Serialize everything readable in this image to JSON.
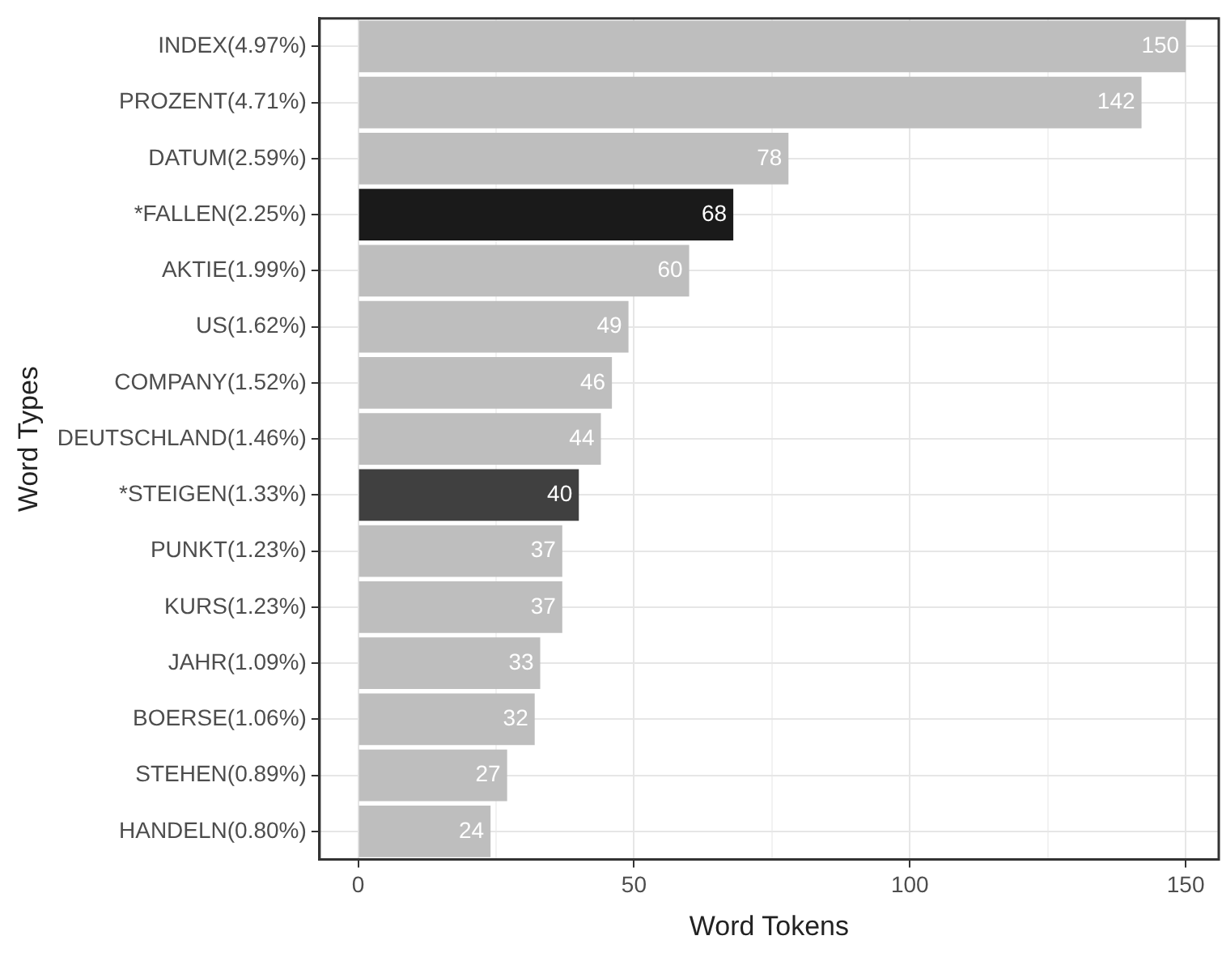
{
  "chart_data": {
    "type": "bar",
    "orientation": "horizontal",
    "xlabel": "Word Tokens",
    "ylabel": "Word Types",
    "categories": [
      "INDEX(4.97%)",
      "PROZENT(4.71%)",
      "DATUM(2.59%)",
      "*FALLEN(2.25%)",
      "AKTIE(1.99%)",
      "US(1.62%)",
      "COMPANY(1.52%)",
      "DEUTSCHLAND(1.46%)",
      "*STEIGEN(1.33%)",
      "PUNKT(1.23%)",
      "KURS(1.23%)",
      "JAHR(1.09%)",
      "BOERSE(1.06%)",
      "STEHEN(0.89%)",
      "HANDELN(0.80%)"
    ],
    "values": [
      150,
      142,
      78,
      68,
      60,
      49,
      46,
      44,
      40,
      37,
      37,
      33,
      32,
      27,
      24
    ],
    "colors": [
      "#bebebe",
      "#bebebe",
      "#bebebe",
      "#1a1a1a",
      "#bebebe",
      "#bebebe",
      "#bebebe",
      "#bebebe",
      "#404040",
      "#bebebe",
      "#bebebe",
      "#bebebe",
      "#bebebe",
      "#bebebe",
      "#bebebe"
    ],
    "xlim": [
      -7,
      156
    ],
    "xticks": [
      0,
      {
        "value": 25,
        "label": null
      },
      50,
      {
        "value": 75,
        "label": null
      },
      100,
      {
        "value": 125,
        "label": null
      },
      150
    ],
    "data_labels": true,
    "grid": true,
    "legend": false
  }
}
